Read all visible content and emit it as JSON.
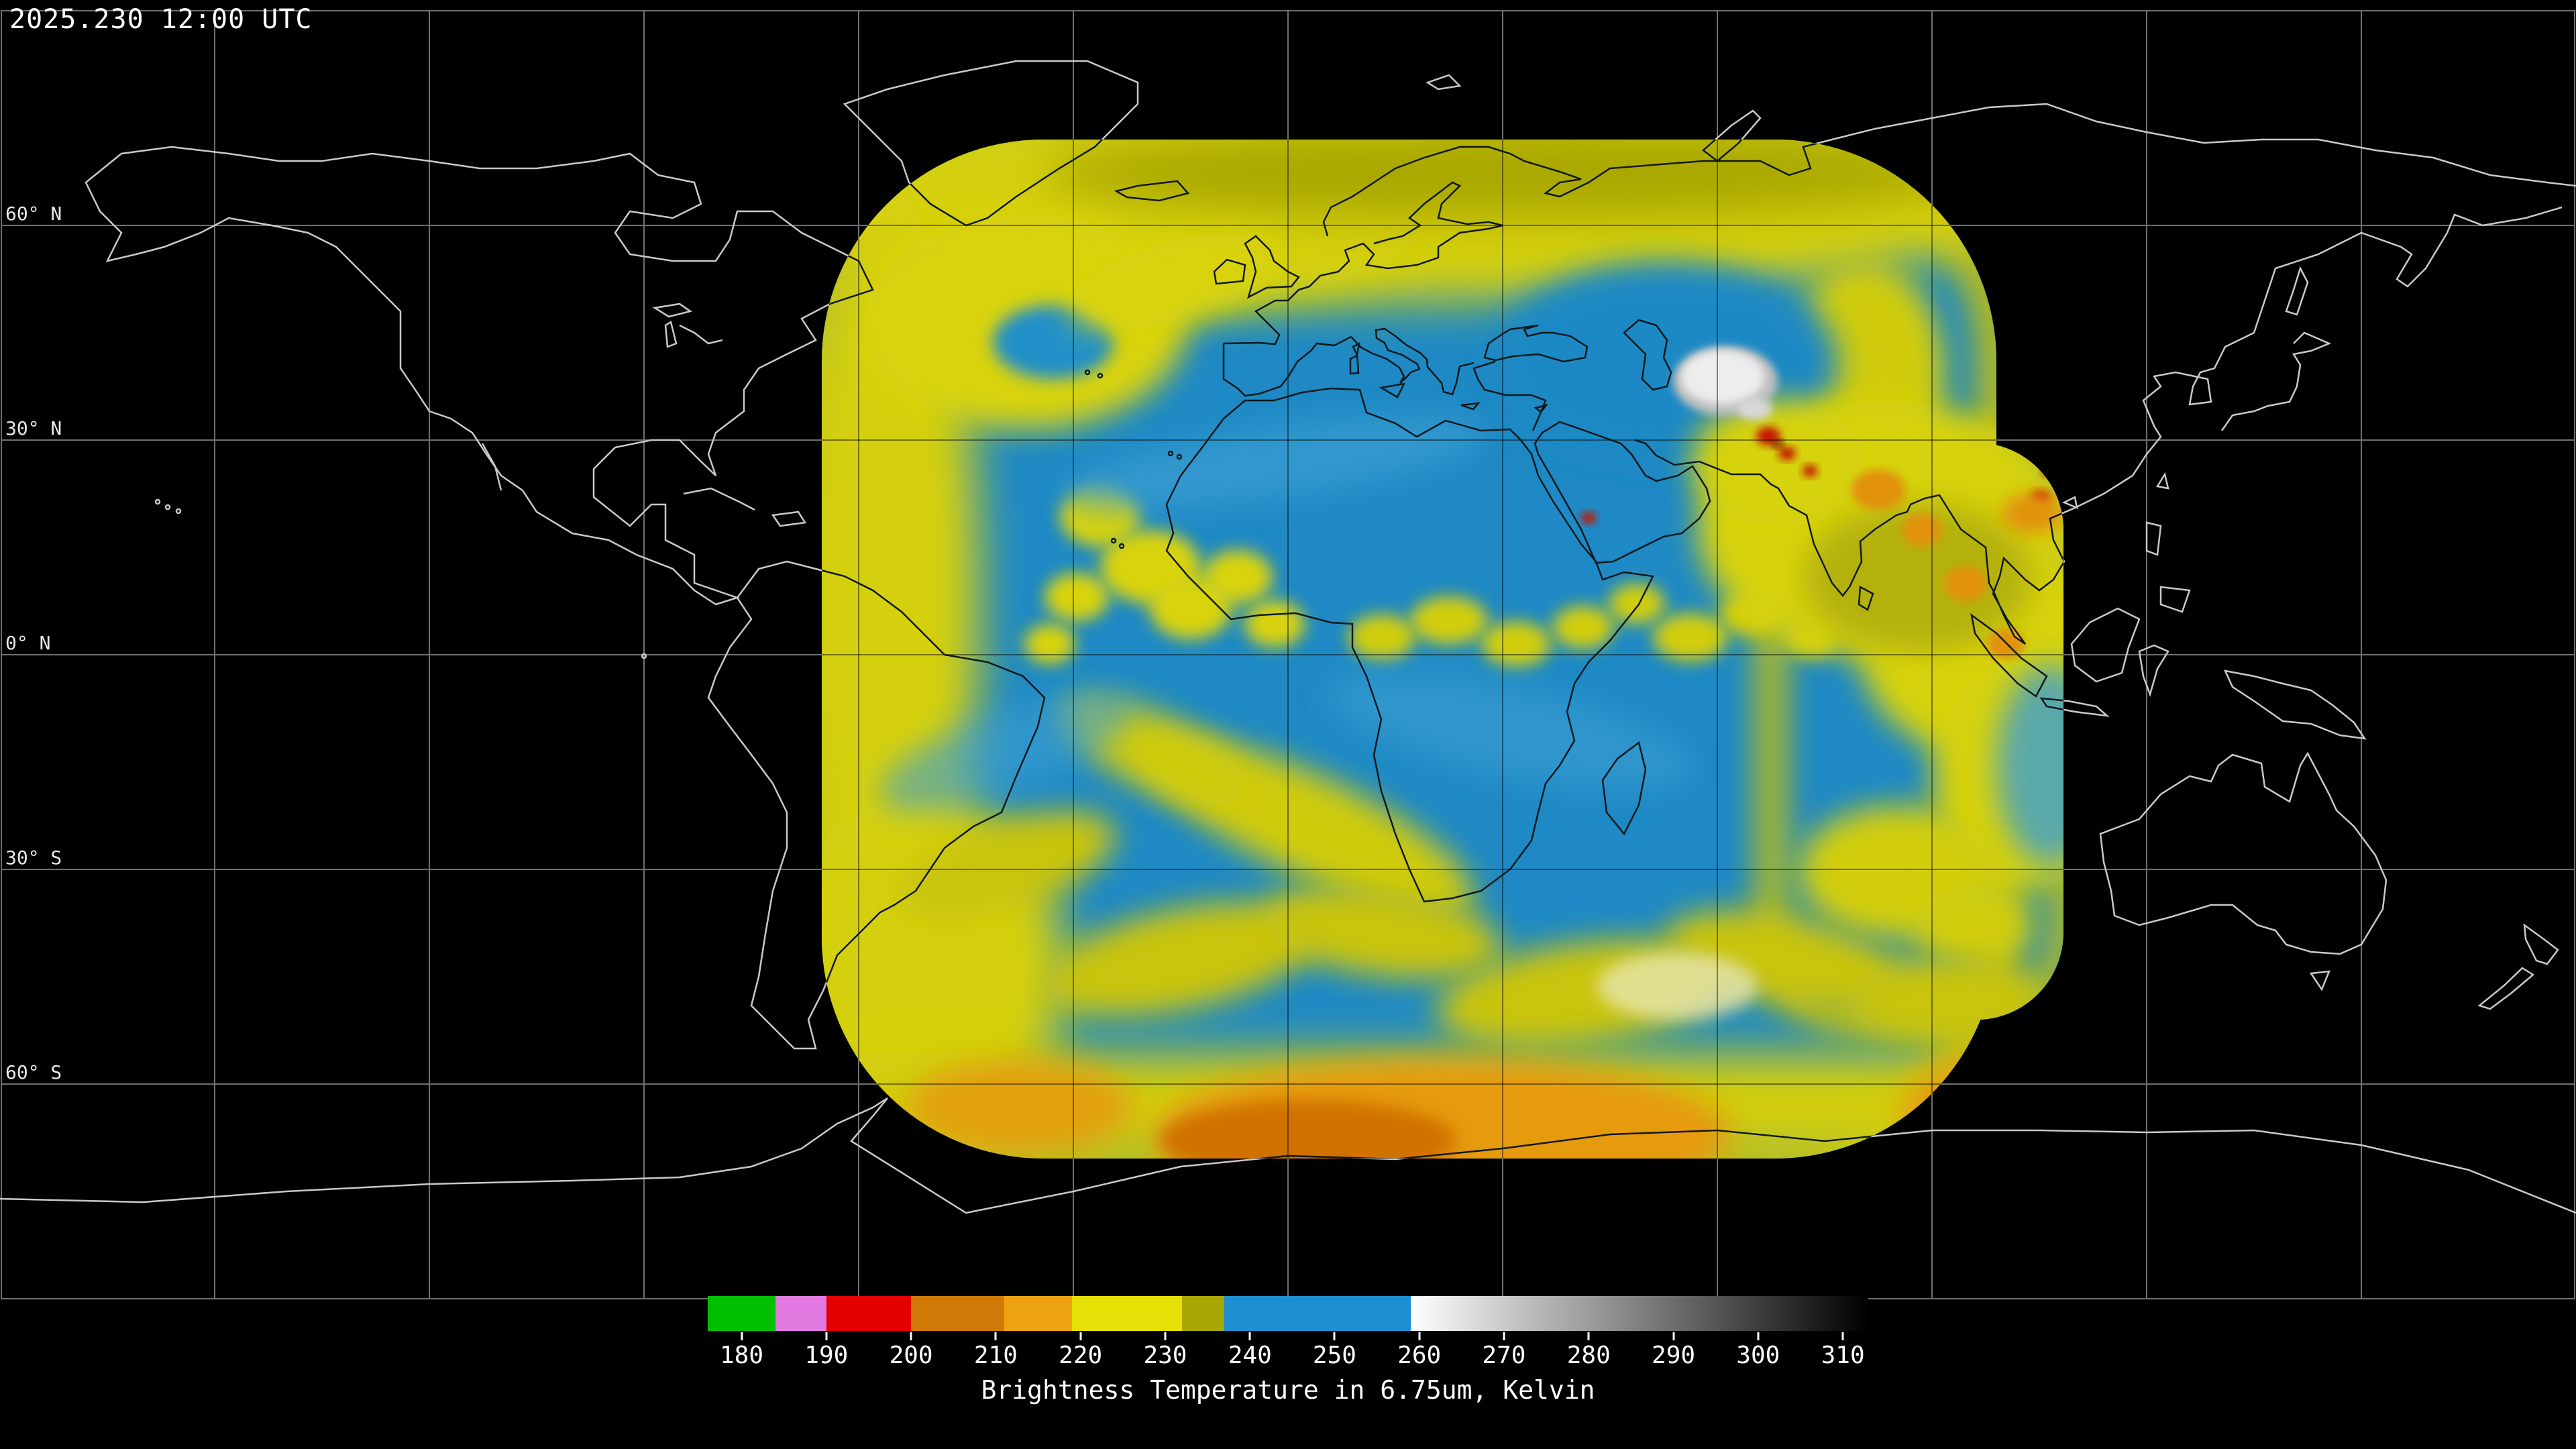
{
  "header": {
    "timestamp": "2025.230 12:00 UTC"
  },
  "map": {
    "lat_labels": [
      "60° N",
      "30° N",
      "0° N",
      "30° S",
      "60° S"
    ],
    "graticule_spacing_degrees": 30
  },
  "colorbar": {
    "caption": "Brightness Temperature in 6.75um, Kelvin",
    "range": [
      176,
      313
    ],
    "ticks": [
      180,
      190,
      200,
      210,
      220,
      230,
      240,
      250,
      260,
      270,
      280,
      290,
      300,
      310
    ],
    "segments": [
      {
        "from": 176,
        "to": 184,
        "color": "#00be00",
        "label": "green"
      },
      {
        "from": 184,
        "to": 190,
        "color": "#e07ae0",
        "label": "violet"
      },
      {
        "from": 190,
        "to": 200,
        "color": "#e30000",
        "label": "red"
      },
      {
        "from": 200,
        "to": 211,
        "color": "#cf7a08",
        "label": "orange-brown"
      },
      {
        "from": 211,
        "to": 219,
        "color": "#eda311",
        "label": "orange"
      },
      {
        "from": 219,
        "to": 232,
        "color": "#e6e007",
        "label": "yellow"
      },
      {
        "from": 232,
        "to": 237,
        "color": "#a9a705",
        "label": "olive"
      },
      {
        "from": 237,
        "to": 259,
        "color": "#1e8fd2",
        "label": "blue"
      },
      {
        "from": 259,
        "to": 313,
        "gradient": [
          "#ffffff",
          "#000000"
        ],
        "label": "grayscale"
      }
    ]
  },
  "colors": {
    "background": "#000000",
    "coastline_light": "#c9c9c9",
    "coastline_over_data": "#10181c",
    "grid": "#6f6f6f",
    "data_base_blue": "#1e89c4",
    "data_yellow": "#d5d010",
    "data_olive": "#a9a706",
    "data_orange": "#e69a0c",
    "data_red": "#c41800",
    "data_cloud_white": "#ededed"
  }
}
